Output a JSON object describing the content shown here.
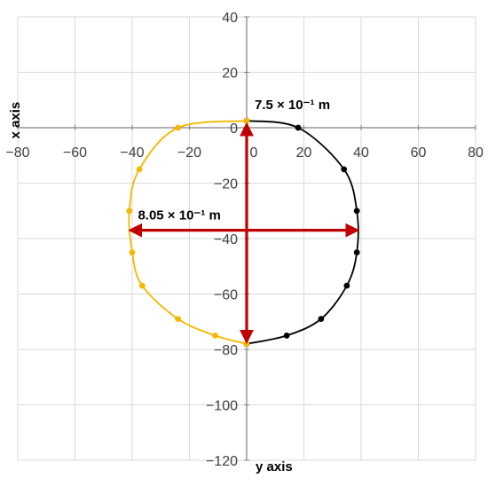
{
  "chart_data": {
    "type": "scatter",
    "xlabel": "y axis",
    "ylabel": "x axis",
    "xlim": [
      -80,
      80
    ],
    "ylim": [
      -120,
      40
    ],
    "x_ticks": [
      -80,
      -60,
      -40,
      -20,
      0,
      20,
      40,
      60,
      80
    ],
    "y_ticks": [
      40,
      20,
      0,
      -20,
      -40,
      -60,
      -80,
      -100,
      -120
    ],
    "x_tick_labels": [
      "−80",
      "−60",
      "−40",
      "−20",
      "0",
      "20",
      "40",
      "60",
      "80"
    ],
    "y_tick_labels": [
      "40",
      "20",
      "0",
      "−20",
      "−40",
      "−60",
      "−80",
      "−100",
      "−120"
    ],
    "grid": true,
    "series": [
      {
        "color": "#000000",
        "points": [
          [
            0,
            2.5
          ],
          [
            18,
            0
          ],
          [
            34,
            -15
          ],
          [
            38.5,
            -30
          ],
          [
            38.5,
            -45
          ],
          [
            35,
            -57
          ],
          [
            26,
            -69
          ],
          [
            14,
            -75
          ],
          [
            0,
            -78
          ]
        ]
      },
      {
        "color": "#f5b800",
        "points": [
          [
            0,
            2.5
          ],
          [
            -24,
            0
          ],
          [
            -37.5,
            -15
          ],
          [
            -41,
            -30
          ],
          [
            -40,
            -45
          ],
          [
            -36.5,
            -57
          ],
          [
            -24,
            -69
          ],
          [
            -11,
            -75
          ],
          [
            0,
            -78
          ]
        ]
      }
    ],
    "arrows": [
      {
        "color": "#c00000",
        "from": [
          0,
          1
        ],
        "to": [
          0,
          -77
        ],
        "label": "7.5 × 10⁻¹ m"
      },
      {
        "color": "#c00000",
        "from": [
          -40.5,
          -37
        ],
        "to": [
          38.5,
          -37
        ],
        "label": "8.05 × 10⁻¹ m"
      }
    ]
  }
}
